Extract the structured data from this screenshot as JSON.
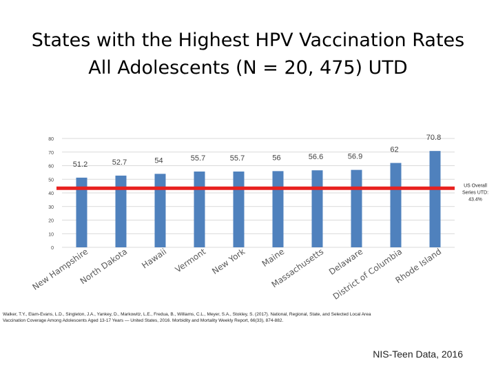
{
  "title_line1": "States with the Highest HPV Vaccination Rates",
  "title_line2": "All Adolescents (N = 20, 475) UTD",
  "citation_line1": "Walker, T.Y., Elam-Evans, L.D., Singleton, J.A., Yankey, D., Markowitz, L.E., Fredua, B., Williams, C.L., Meyer, S.A., Stokley, S. (2017). National, Regional, State, and Selected Local Area",
  "citation_line2": "Vaccination Coverage Among Adolescents Aged 13-17 Years — United States, 2016. Morbidity and Mortality Weekly Report, 66(33), 874-882.",
  "source_label": "NIS-Teen Data, 2016",
  "chart_data": {
    "type": "bar",
    "categories": [
      "New Hampshire",
      "North Dakota",
      "Hawaii",
      "Vermont",
      "New York",
      "Maine",
      "Massachusetts",
      "Delaware",
      "District of Columbia",
      "Rhode Island"
    ],
    "values": [
      51.2,
      52.7,
      54,
      55.7,
      55.7,
      56,
      56.6,
      56.9,
      62,
      70.8
    ],
    "value_labels": [
      "51.2",
      "52.7",
      "54",
      "55.7",
      "55.7",
      "56",
      "56.6",
      "56.9",
      "62",
      "70.8"
    ],
    "ylim": [
      0,
      80
    ],
    "yticks": [
      0,
      10,
      20,
      30,
      40,
      50,
      60,
      70,
      80
    ],
    "ytick_labels": [
      "0",
      "10",
      "20",
      "30",
      "40",
      "50",
      "60",
      "70",
      "80"
    ],
    "reference_line": {
      "value": 43.4,
      "label_lines": [
        "US Overall",
        "Series UTD:",
        "43.4%"
      ],
      "color": "#e8211f"
    },
    "bar_color": "#4f81bd",
    "grid": true
  }
}
